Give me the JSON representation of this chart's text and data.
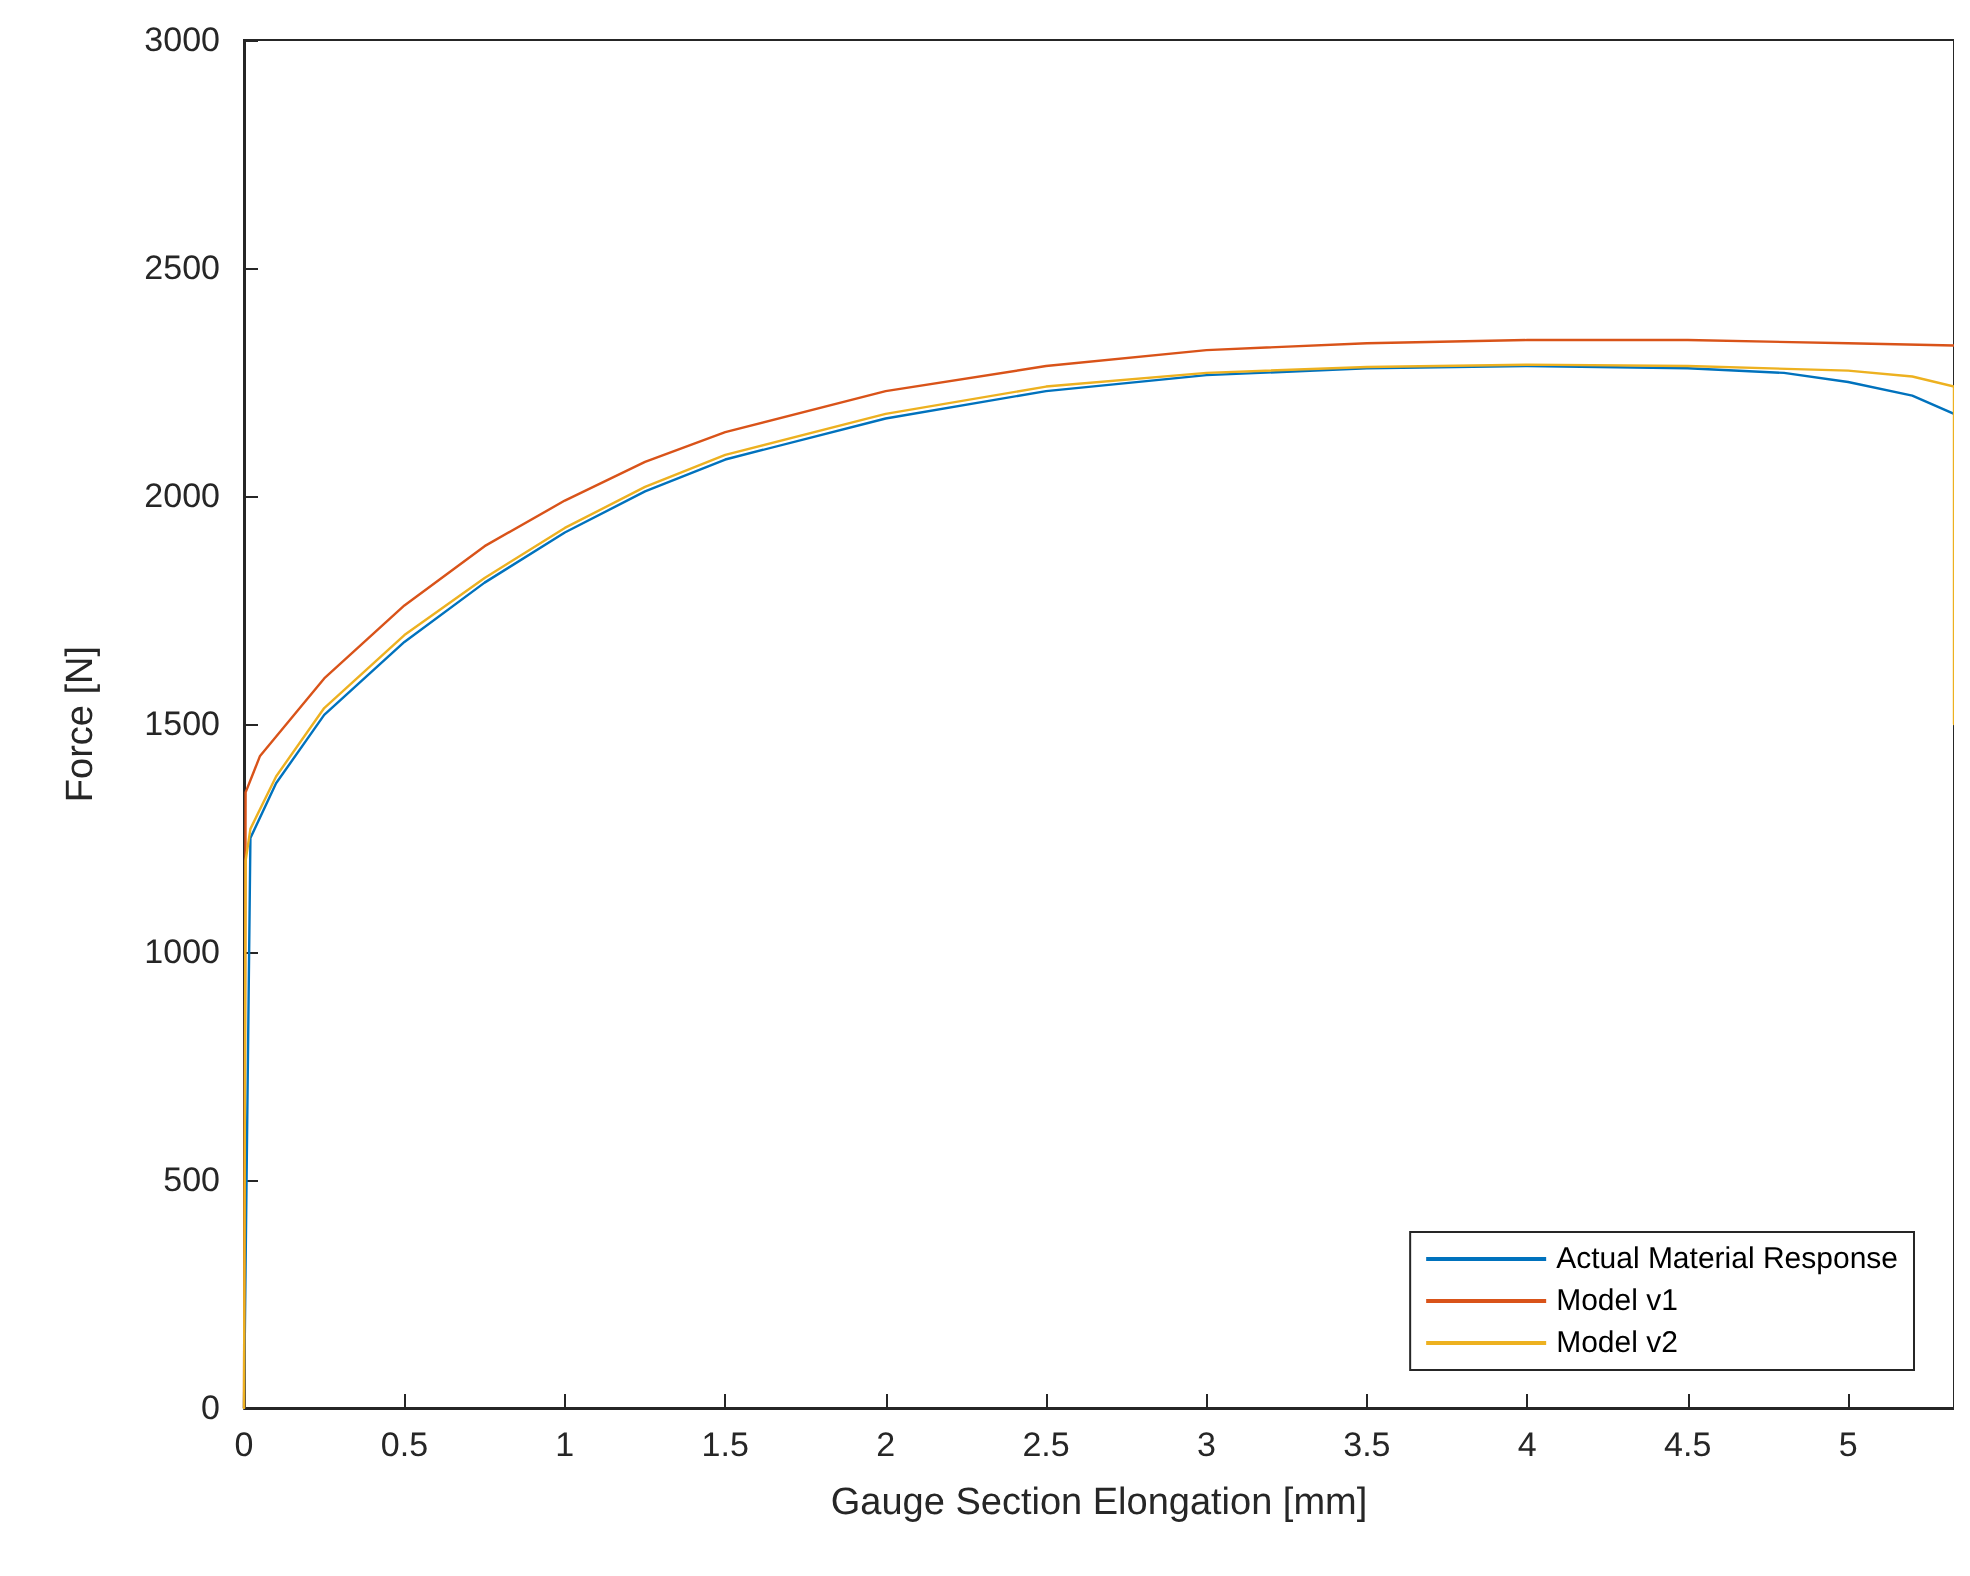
{
  "chart_data": {
    "type": "line",
    "xlabel": "Gauge Section Elongation [mm]",
    "ylabel": "Force [N]",
    "xlim": [
      0,
      5.33
    ],
    "xticks": [
      0,
      0.5,
      1,
      1.5,
      2,
      2.5,
      3,
      3.5,
      4,
      4.5,
      5
    ],
    "ylim": [
      0,
      3000
    ],
    "yticks": [
      0,
      500,
      1000,
      1500,
      2000,
      2500,
      3000
    ],
    "grid": false,
    "legend": "bottom right",
    "marker": "none",
    "line_style": "solid",
    "series": [
      {
        "name": "Actual Material Response",
        "color": "#0072bd",
        "x": [
          0,
          0.02,
          0.1,
          0.25,
          0.5,
          0.75,
          1,
          1.25,
          1.5,
          2,
          2.5,
          3,
          3.5,
          4,
          4.5,
          4.8,
          5,
          5.2,
          5.33
        ],
        "values": [
          0,
          1250,
          1370,
          1520,
          1680,
          1810,
          1920,
          2010,
          2080,
          2170,
          2230,
          2265,
          2280,
          2285,
          2280,
          2270,
          2250,
          2220,
          2180
        ]
      },
      {
        "name": "Model v1",
        "color": "#d95319",
        "x": [
          0,
          0.005,
          0.05,
          0.25,
          0.5,
          0.75,
          1,
          1.25,
          1.5,
          2,
          2.5,
          3,
          3.5,
          4,
          4.5,
          5,
          5.33
        ],
        "values": [
          0,
          1350,
          1430,
          1600,
          1760,
          1890,
          1990,
          2075,
          2140,
          2230,
          2285,
          2320,
          2335,
          2342,
          2342,
          2335,
          2330
        ]
      },
      {
        "name": "Model v2",
        "color": "#edb120",
        "x": [
          0,
          0.005,
          0.02,
          0.1,
          0.25,
          0.5,
          0.75,
          1,
          1.25,
          1.5,
          2,
          2.5,
          3,
          3.5,
          4,
          4.5,
          5,
          5.2,
          5.33,
          5.33
        ],
        "values": [
          0,
          1200,
          1270,
          1385,
          1535,
          1695,
          1820,
          1930,
          2020,
          2090,
          2180,
          2240,
          2270,
          2283,
          2288,
          2285,
          2275,
          2262,
          2240,
          1500
        ]
      }
    ]
  }
}
